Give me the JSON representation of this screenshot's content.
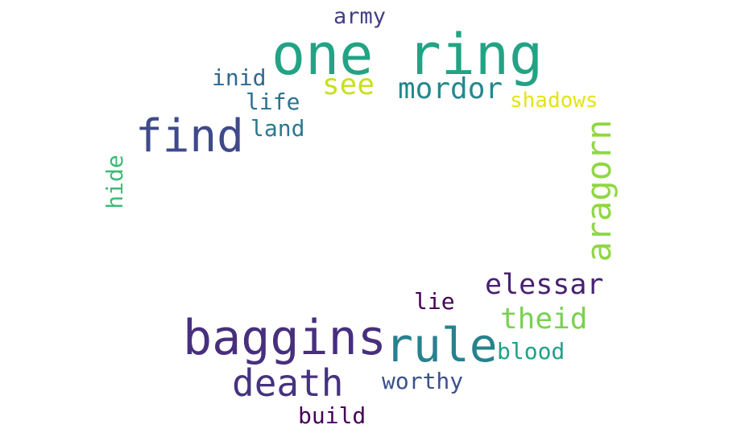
{
  "word_cloud": {
    "words": [
      {
        "text": "one ring",
        "color": "#22a384"
      },
      {
        "text": "find",
        "color": "#3e4a89"
      },
      {
        "text": "baggins",
        "color": "#472f7d"
      },
      {
        "text": "rule",
        "color": "#26828e"
      },
      {
        "text": "death",
        "color": "#46337e"
      },
      {
        "text": "aragorn",
        "color": "#90d743"
      },
      {
        "text": "mordor",
        "color": "#23898e"
      },
      {
        "text": "elessar",
        "color": "#482173"
      },
      {
        "text": "theid",
        "color": "#7ad151"
      },
      {
        "text": "see",
        "color": "#c8e020"
      },
      {
        "text": "shadows",
        "color": "#e2e418"
      },
      {
        "text": "army",
        "color": "#433e85"
      },
      {
        "text": "inid",
        "color": "#31688e"
      },
      {
        "text": "life",
        "color": "#2c728e"
      },
      {
        "text": "land",
        "color": "#2a788e"
      },
      {
        "text": "hide",
        "color": "#3bbb75"
      },
      {
        "text": "lie",
        "color": "#440154"
      },
      {
        "text": "blood",
        "color": "#1fa187"
      },
      {
        "text": "worthy",
        "color": "#3b518b"
      },
      {
        "text": "build",
        "color": "#450457"
      }
    ]
  }
}
